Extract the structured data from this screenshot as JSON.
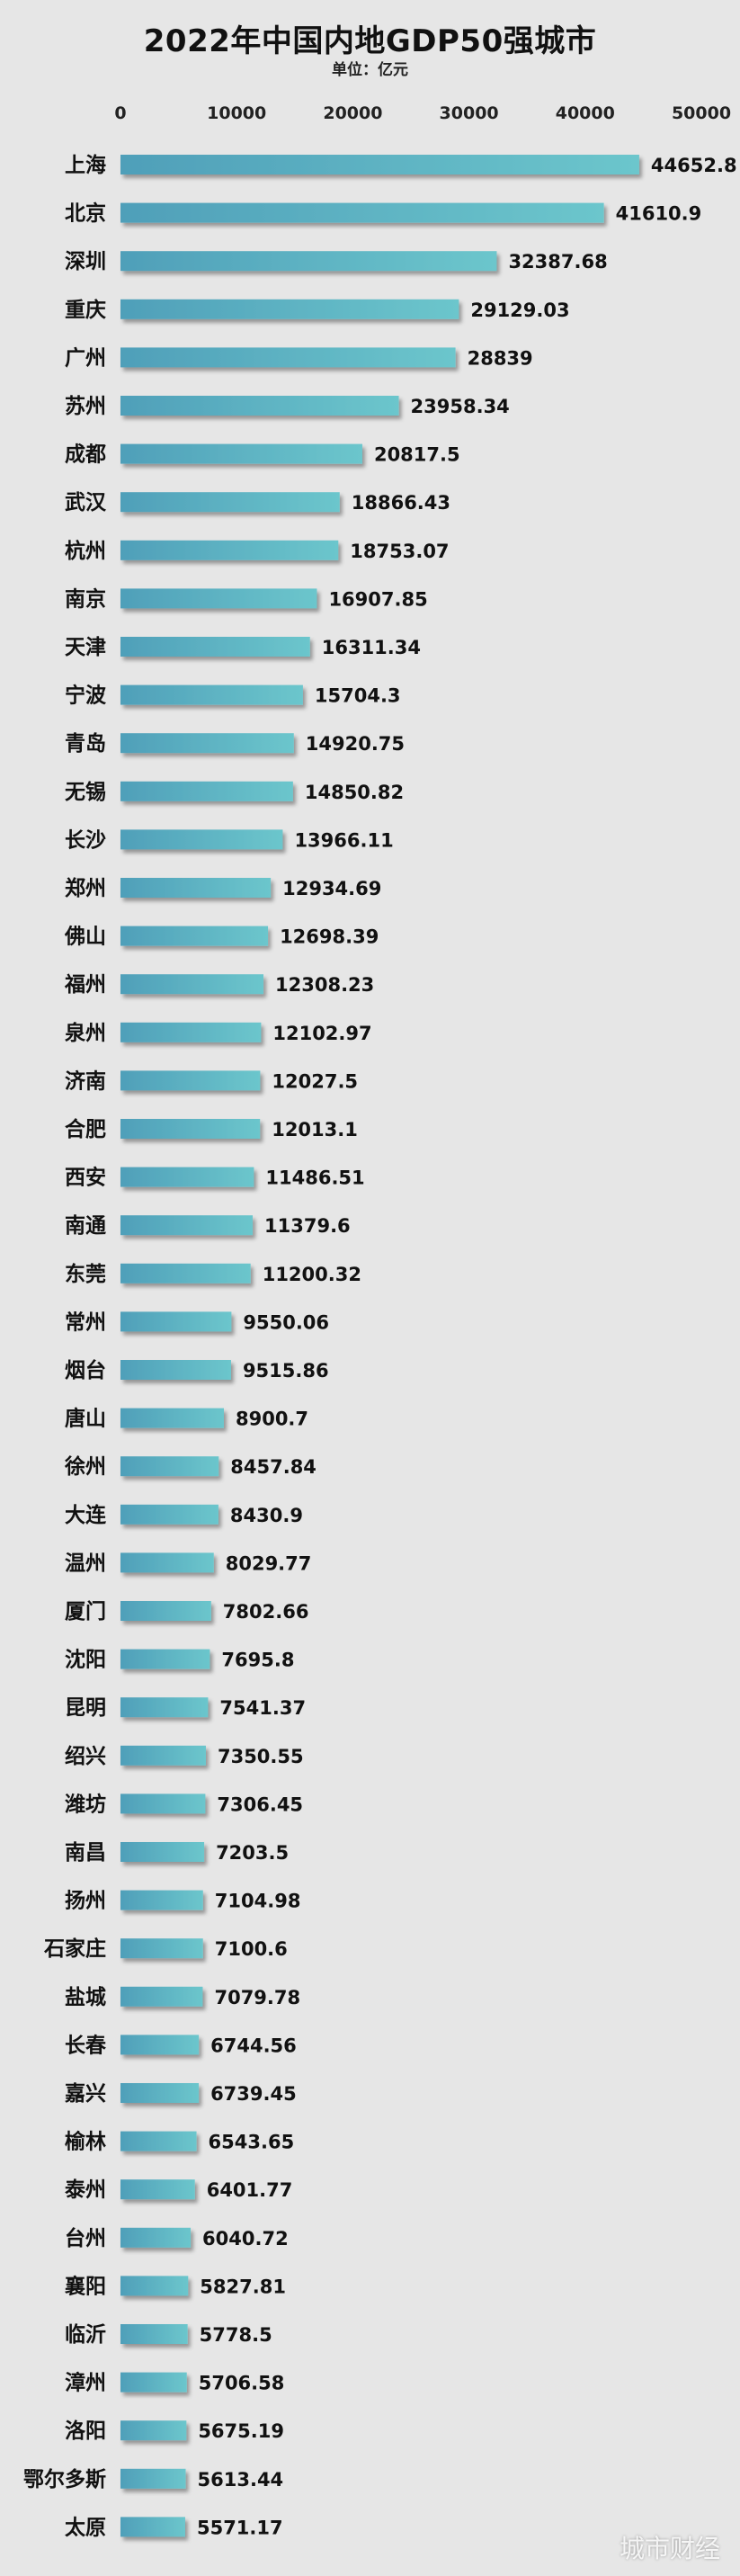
{
  "chart_data": {
    "type": "bar",
    "orientation": "horizontal",
    "title": "2022年中国内地GDP50强城市",
    "subtitle": "单位：亿元",
    "xlim": [
      0,
      50000
    ],
    "xticks": [
      "0",
      "10000",
      "20000",
      "30000",
      "40000",
      "50000"
    ],
    "grid": false,
    "categories": [
      "上海",
      "北京",
      "深圳",
      "重庆",
      "广州",
      "苏州",
      "成都",
      "武汉",
      "杭州",
      "南京",
      "天津",
      "宁波",
      "青岛",
      "无锡",
      "长沙",
      "郑州",
      "佛山",
      "福州",
      "泉州",
      "济南",
      "合肥",
      "西安",
      "南通",
      "东莞",
      "常州",
      "烟台",
      "唐山",
      "徐州",
      "大连",
      "温州",
      "厦门",
      "沈阳",
      "昆明",
      "绍兴",
      "潍坊",
      "南昌",
      "扬州",
      "石家庄",
      "盐城",
      "长春",
      "嘉兴",
      "榆林",
      "泰州",
      "台州",
      "襄阳",
      "临沂",
      "漳州",
      "洛阳",
      "鄂尔多斯",
      "太原"
    ],
    "values": [
      44652.8,
      41610.9,
      32387.68,
      29129.03,
      28839,
      23958.34,
      20817.5,
      18866.43,
      18753.07,
      16907.85,
      16311.34,
      15704.3,
      14920.75,
      14850.82,
      13966.11,
      12934.69,
      12698.39,
      12308.23,
      12102.97,
      12027.5,
      12013.1,
      11486.51,
      11379.6,
      11200.32,
      9550.06,
      9515.86,
      8900.7,
      8457.84,
      8430.9,
      8029.77,
      7802.66,
      7695.8,
      7541.37,
      7350.55,
      7306.45,
      7203.5,
      7104.98,
      7100.6,
      7079.78,
      6744.56,
      6739.45,
      6543.65,
      6401.77,
      6040.72,
      5827.81,
      5778.5,
      5706.58,
      5675.19,
      5613.44,
      5571.17
    ],
    "value_labels": [
      "44652.8",
      "41610.9",
      "32387.68",
      "29129.03",
      "28839",
      "23958.34",
      "20817.5",
      "18866.43",
      "18753.07",
      "16907.85",
      "16311.34",
      "15704.3",
      "14920.75",
      "14850.82",
      "13966.11",
      "12934.69",
      "12698.39",
      "12308.23",
      "12102.97",
      "12027.5",
      "12013.1",
      "11486.51",
      "11379.6",
      "11200.32",
      "9550.06",
      "9515.86",
      "8900.7",
      "8457.84",
      "8430.9",
      "8029.77",
      "7802.66",
      "7695.8",
      "7541.37",
      "7350.55",
      "7306.45",
      "7203.5",
      "7104.98",
      "7100.6",
      "7079.78",
      "6744.56",
      "6739.45",
      "6543.65",
      "6401.77",
      "6040.72",
      "5827.81",
      "5778.5",
      "5706.58",
      "5675.19",
      "5613.44",
      "5571.17"
    ],
    "bar_colors": [
      "#4f9fb9",
      "#6cc6cc"
    ]
  },
  "watermark": "城市财经"
}
